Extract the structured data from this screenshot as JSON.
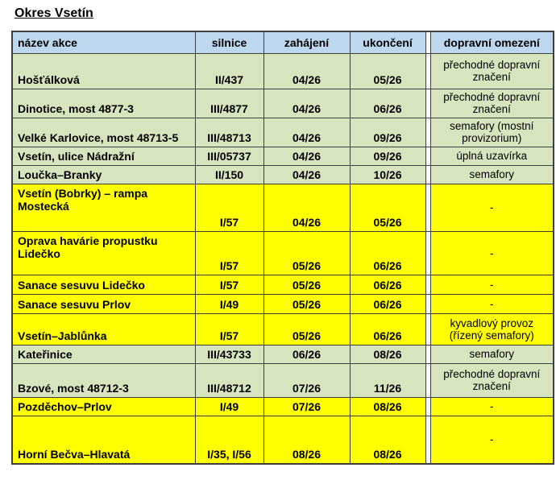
{
  "title": "Okres Vsetín",
  "colors": {
    "header_bg": "#bdd7ee",
    "row_green": "#d7e4bd",
    "row_yellow": "#ffff00",
    "border": "#3e3e3e"
  },
  "table": {
    "headers": {
      "name": "název akce",
      "road": "silnice",
      "start": "zahájení",
      "end": "ukončení",
      "restriction": "dopravní omezení"
    },
    "rows": [
      {
        "name": "Hošťálková",
        "road": "II/437",
        "start": "04/26",
        "end": "05/26",
        "restriction": "přechodné dopravní značení",
        "highlight": false
      },
      {
        "name": "Dinotice, most 4877-3",
        "road": "III/4877",
        "start": "04/26",
        "end": "06/26",
        "restriction": "přechodné dopravní značení",
        "highlight": false
      },
      {
        "name": "Velké Karlovice, most 48713-5",
        "road": "III/48713",
        "start": "04/26",
        "end": "09/26",
        "restriction": "semafory (mostní provizorium)",
        "highlight": false
      },
      {
        "name": "Vsetín, ulice Nádražní",
        "road": "III/05737",
        "start": "04/26",
        "end": "09/26",
        "restriction": "úplná uzavírka",
        "highlight": false
      },
      {
        "name": "Loučka–Branky",
        "road": "II/150",
        "start": "04/26",
        "end": "10/26",
        "restriction": "semafory",
        "highlight": false
      },
      {
        "name": "Vsetín (Bobrky) – rampa Mostecká",
        "road": "I/57",
        "start": "04/26",
        "end": "05/26",
        "restriction": "-",
        "highlight": true
      },
      {
        "name": "Oprava havárie propustku Lidečko",
        "road": "I/57",
        "start": "05/26",
        "end": "06/26",
        "restriction": "-",
        "highlight": true
      },
      {
        "name": "Sanace sesuvu Lidečko",
        "road": "I/57",
        "start": "05/26",
        "end": "06/26",
        "restriction": "-",
        "highlight": true
      },
      {
        "name": "Sanace sesuvu Prlov",
        "road": "I/49",
        "start": "05/26",
        "end": "06/26",
        "restriction": "-",
        "highlight": true
      },
      {
        "name": "Vsetín–Jablůnka",
        "road": "I/57",
        "start": "05/26",
        "end": "06/26",
        "restriction": "kyvadlový provoz (řízený semafory)",
        "highlight": true
      },
      {
        "name": "Kateřinice",
        "road": "III/43733",
        "start": "06/26",
        "end": "08/26",
        "restriction": "semafory",
        "highlight": false
      },
      {
        "name": "Bzové, most 48712-3",
        "road": "III/48712",
        "start": "07/26",
        "end": "11/26",
        "restriction": "přechodné dopravní značení",
        "highlight": false
      },
      {
        "name": "Pozděchov–Prlov",
        "road": "I/49",
        "start": "07/26",
        "end": "08/26",
        "restriction": "-",
        "highlight": true
      },
      {
        "name": "Horní Bečva–Hlavatá",
        "road": "I/35, I/56",
        "start": "08/26",
        "end": "08/26",
        "restriction": "-",
        "highlight": true
      }
    ]
  }
}
